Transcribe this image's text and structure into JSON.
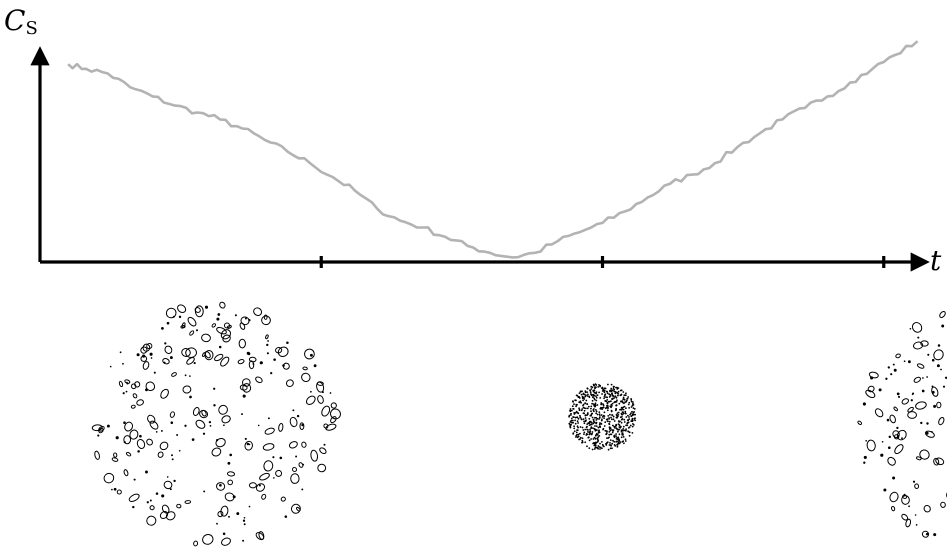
{
  "chart_data": {
    "type": "line",
    "title": "",
    "ylabel": {
      "main": "C",
      "sub": "S"
    },
    "xlabel": "t",
    "x_ticks": [
      0.25,
      0.5,
      0.75
    ],
    "xlim": [
      0.0,
      0.8
    ],
    "ylim": [
      0.0,
      1.0
    ],
    "grid": false,
    "series": [
      {
        "color": "#b3b3b3",
        "x": [
          0.025,
          0.041,
          0.06,
          0.08,
          0.1,
          0.12,
          0.14,
          0.16,
          0.18,
          0.2,
          0.22,
          0.24,
          0.26,
          0.28,
          0.3,
          0.32,
          0.34,
          0.36,
          0.38,
          0.4,
          0.42,
          0.44,
          0.46,
          0.48,
          0.5,
          0.52,
          0.54,
          0.56,
          0.58,
          0.6,
          0.62,
          0.64,
          0.66,
          0.68,
          0.7,
          0.72,
          0.74,
          0.76,
          0.78
        ],
        "values": [
          0.86,
          0.84,
          0.82,
          0.76,
          0.72,
          0.68,
          0.65,
          0.62,
          0.58,
          0.53,
          0.48,
          0.43,
          0.37,
          0.31,
          0.23,
          0.18,
          0.15,
          0.11,
          0.07,
          0.04,
          0.02,
          0.04,
          0.09,
          0.13,
          0.17,
          0.22,
          0.28,
          0.34,
          0.38,
          0.43,
          0.5,
          0.56,
          0.62,
          0.67,
          0.72,
          0.78,
          0.84,
          0.9,
          0.96
        ]
      }
    ],
    "snapshot_clusters": [
      {
        "x": 0.155,
        "state": "dispersed"
      },
      {
        "x": 0.5,
        "state": "compact"
      },
      {
        "x": 0.835,
        "state": "dispersed"
      }
    ]
  }
}
